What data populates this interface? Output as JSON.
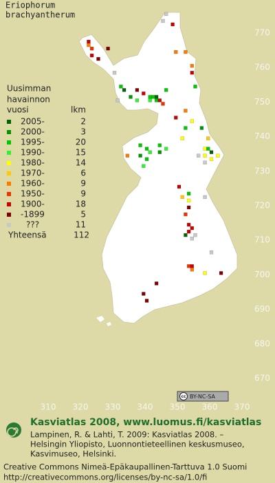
{
  "title": [
    "Eriophorum",
    "brachyantherum"
  ],
  "legend": {
    "header": [
      "Uusimman",
      "havainnon",
      "vuosi"
    ],
    "count_header": "lkm",
    "items": [
      {
        "label": "2005-",
        "count": 2,
        "color": "#006400"
      },
      {
        "label": "2000-",
        "count": 3,
        "color": "#009600"
      },
      {
        "label": "1995-",
        "count": 20,
        "color": "#00c800"
      },
      {
        "label": "1990-",
        "count": 15,
        "color": "#32f032"
      },
      {
        "label": "1980-",
        "count": 14,
        "color": "#ffff00"
      },
      {
        "label": "1970-",
        "count": 6,
        "color": "#ffc800"
      },
      {
        "label": "1960-",
        "count": 9,
        "color": "#ff7800"
      },
      {
        "label": "1950-",
        "count": 9,
        "color": "#f03200"
      },
      {
        "label": "1900-",
        "count": 18,
        "color": "#c80000"
      },
      {
        "label": "-1899",
        "count": 5,
        "color": "#800000"
      },
      {
        "label": "???",
        "count": 11,
        "color": "#c8c8c8"
      }
    ],
    "total_label": "Yhteensä",
    "total": 112
  },
  "axis": {
    "xticks": [
      310,
      320,
      330,
      340,
      350,
      360,
      370
    ],
    "yticks": [
      670,
      680,
      690,
      700,
      710,
      720,
      730,
      740,
      750,
      760,
      770
    ]
  },
  "points": [
    [
      346,
      775,
      10
    ],
    [
      345,
      773,
      10
    ],
    [
      348,
      772,
      8
    ],
    [
      322,
      767,
      8
    ],
    [
      322,
      766,
      6
    ],
    [
      323,
      765,
      7
    ],
    [
      323,
      763,
      8
    ],
    [
      325,
      762,
      9
    ],
    [
      328,
      765,
      9
    ],
    [
      330,
      758,
      10
    ],
    [
      349,
      764,
      6
    ],
    [
      352,
      764,
      6
    ],
    [
      354,
      760,
      6
    ],
    [
      354,
      758,
      8
    ],
    [
      355,
      754,
      2
    ],
    [
      332,
      754,
      2
    ],
    [
      333,
      753,
      0
    ],
    [
      331,
      750,
      10
    ],
    [
      337,
      753,
      9
    ],
    [
      339,
      752,
      8
    ],
    [
      341,
      751,
      2
    ],
    [
      342,
      751,
      2
    ],
    [
      343,
      751,
      0
    ],
    [
      341,
      750,
      3
    ],
    [
      343,
      750,
      2
    ],
    [
      344,
      750,
      8
    ],
    [
      345,
      749,
      7
    ],
    [
      346,
      753,
      2
    ],
    [
      337,
      750,
      3
    ],
    [
      335,
      751,
      1
    ],
    [
      352,
      747,
      6
    ],
    [
      349,
      745,
      8
    ],
    [
      354,
      744,
      4
    ],
    [
      352,
      742,
      2
    ],
    [
      357,
      742,
      1
    ],
    [
      351,
      739,
      4
    ],
    [
      358,
      736,
      4
    ],
    [
      359,
      736,
      2
    ],
    [
      360,
      735,
      0
    ],
    [
      358,
      734,
      4
    ],
    [
      360,
      733,
      4
    ],
    [
      358,
      732,
      10
    ],
    [
      356,
      734,
      10
    ],
    [
      362,
      734,
      4
    ],
    [
      359,
      739,
      5
    ],
    [
      338,
      737,
      2
    ],
    [
      340,
      736,
      2
    ],
    [
      341,
      735,
      3
    ],
    [
      338,
      734,
      1
    ],
    [
      340,
      733,
      2
    ],
    [
      339,
      731,
      3
    ],
    [
      334,
      734,
      6
    ],
    [
      344,
      737,
      2
    ],
    [
      346,
      736,
      3
    ],
    [
      344,
      735,
      1
    ],
    [
      350,
      725,
      8
    ],
    [
      353,
      723,
      2
    ],
    [
      353,
      721,
      4
    ],
    [
      351,
      722,
      5
    ],
    [
      358,
      722,
      10
    ],
    [
      353,
      719,
      9
    ],
    [
      352,
      717,
      7
    ],
    [
      353,
      714,
      8
    ],
    [
      354,
      713,
      8
    ],
    [
      353,
      712,
      8
    ],
    [
      354,
      710,
      10
    ],
    [
      355,
      711,
      10
    ],
    [
      352,
      711,
      0
    ],
    [
      360,
      706,
      10
    ],
    [
      353,
      702,
      7
    ],
    [
      354,
      702,
      8
    ],
    [
      358,
      700,
      4
    ],
    [
      363,
      700,
      9
    ],
    [
      354,
      701,
      6
    ],
    [
      343,
      697,
      9
    ],
    [
      340,
      692,
      9
    ],
    [
      339,
      694,
      9
    ]
  ],
  "badge": {
    "cc": "cc",
    "text": "BY-NC-SA"
  },
  "footer": {
    "site": "Kasviatlas 2008, www.luomus.fi/kasviatlas",
    "citation": [
      "Lampinen, R. & Lahti, T. 2009: Kasviatlas 2008. –",
      "Helsingin Yliopisto, Luonnontieteellinen keskusmuseo,",
      "Kasvimuseo, Helsinki."
    ],
    "license": [
      "Creative Commons Nimeä-Epäkaupallinen-Tarttuva 1.0 Suomi",
      "http://creativecommons.org/licenses/by-nc-sa/1.0/fi"
    ]
  }
}
